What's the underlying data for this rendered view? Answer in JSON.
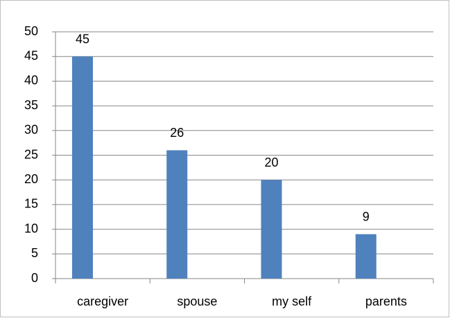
{
  "chart_data": {
    "type": "bar",
    "categories": [
      "caregiver",
      "spouse",
      "my self",
      "parents"
    ],
    "values": [
      45,
      26,
      20,
      9
    ],
    "color": "#4f81bd",
    "ylim": [
      0,
      50
    ],
    "yticks": [
      0,
      5,
      10,
      15,
      20,
      25,
      30,
      35,
      40,
      45,
      50
    ],
    "grid": true
  }
}
